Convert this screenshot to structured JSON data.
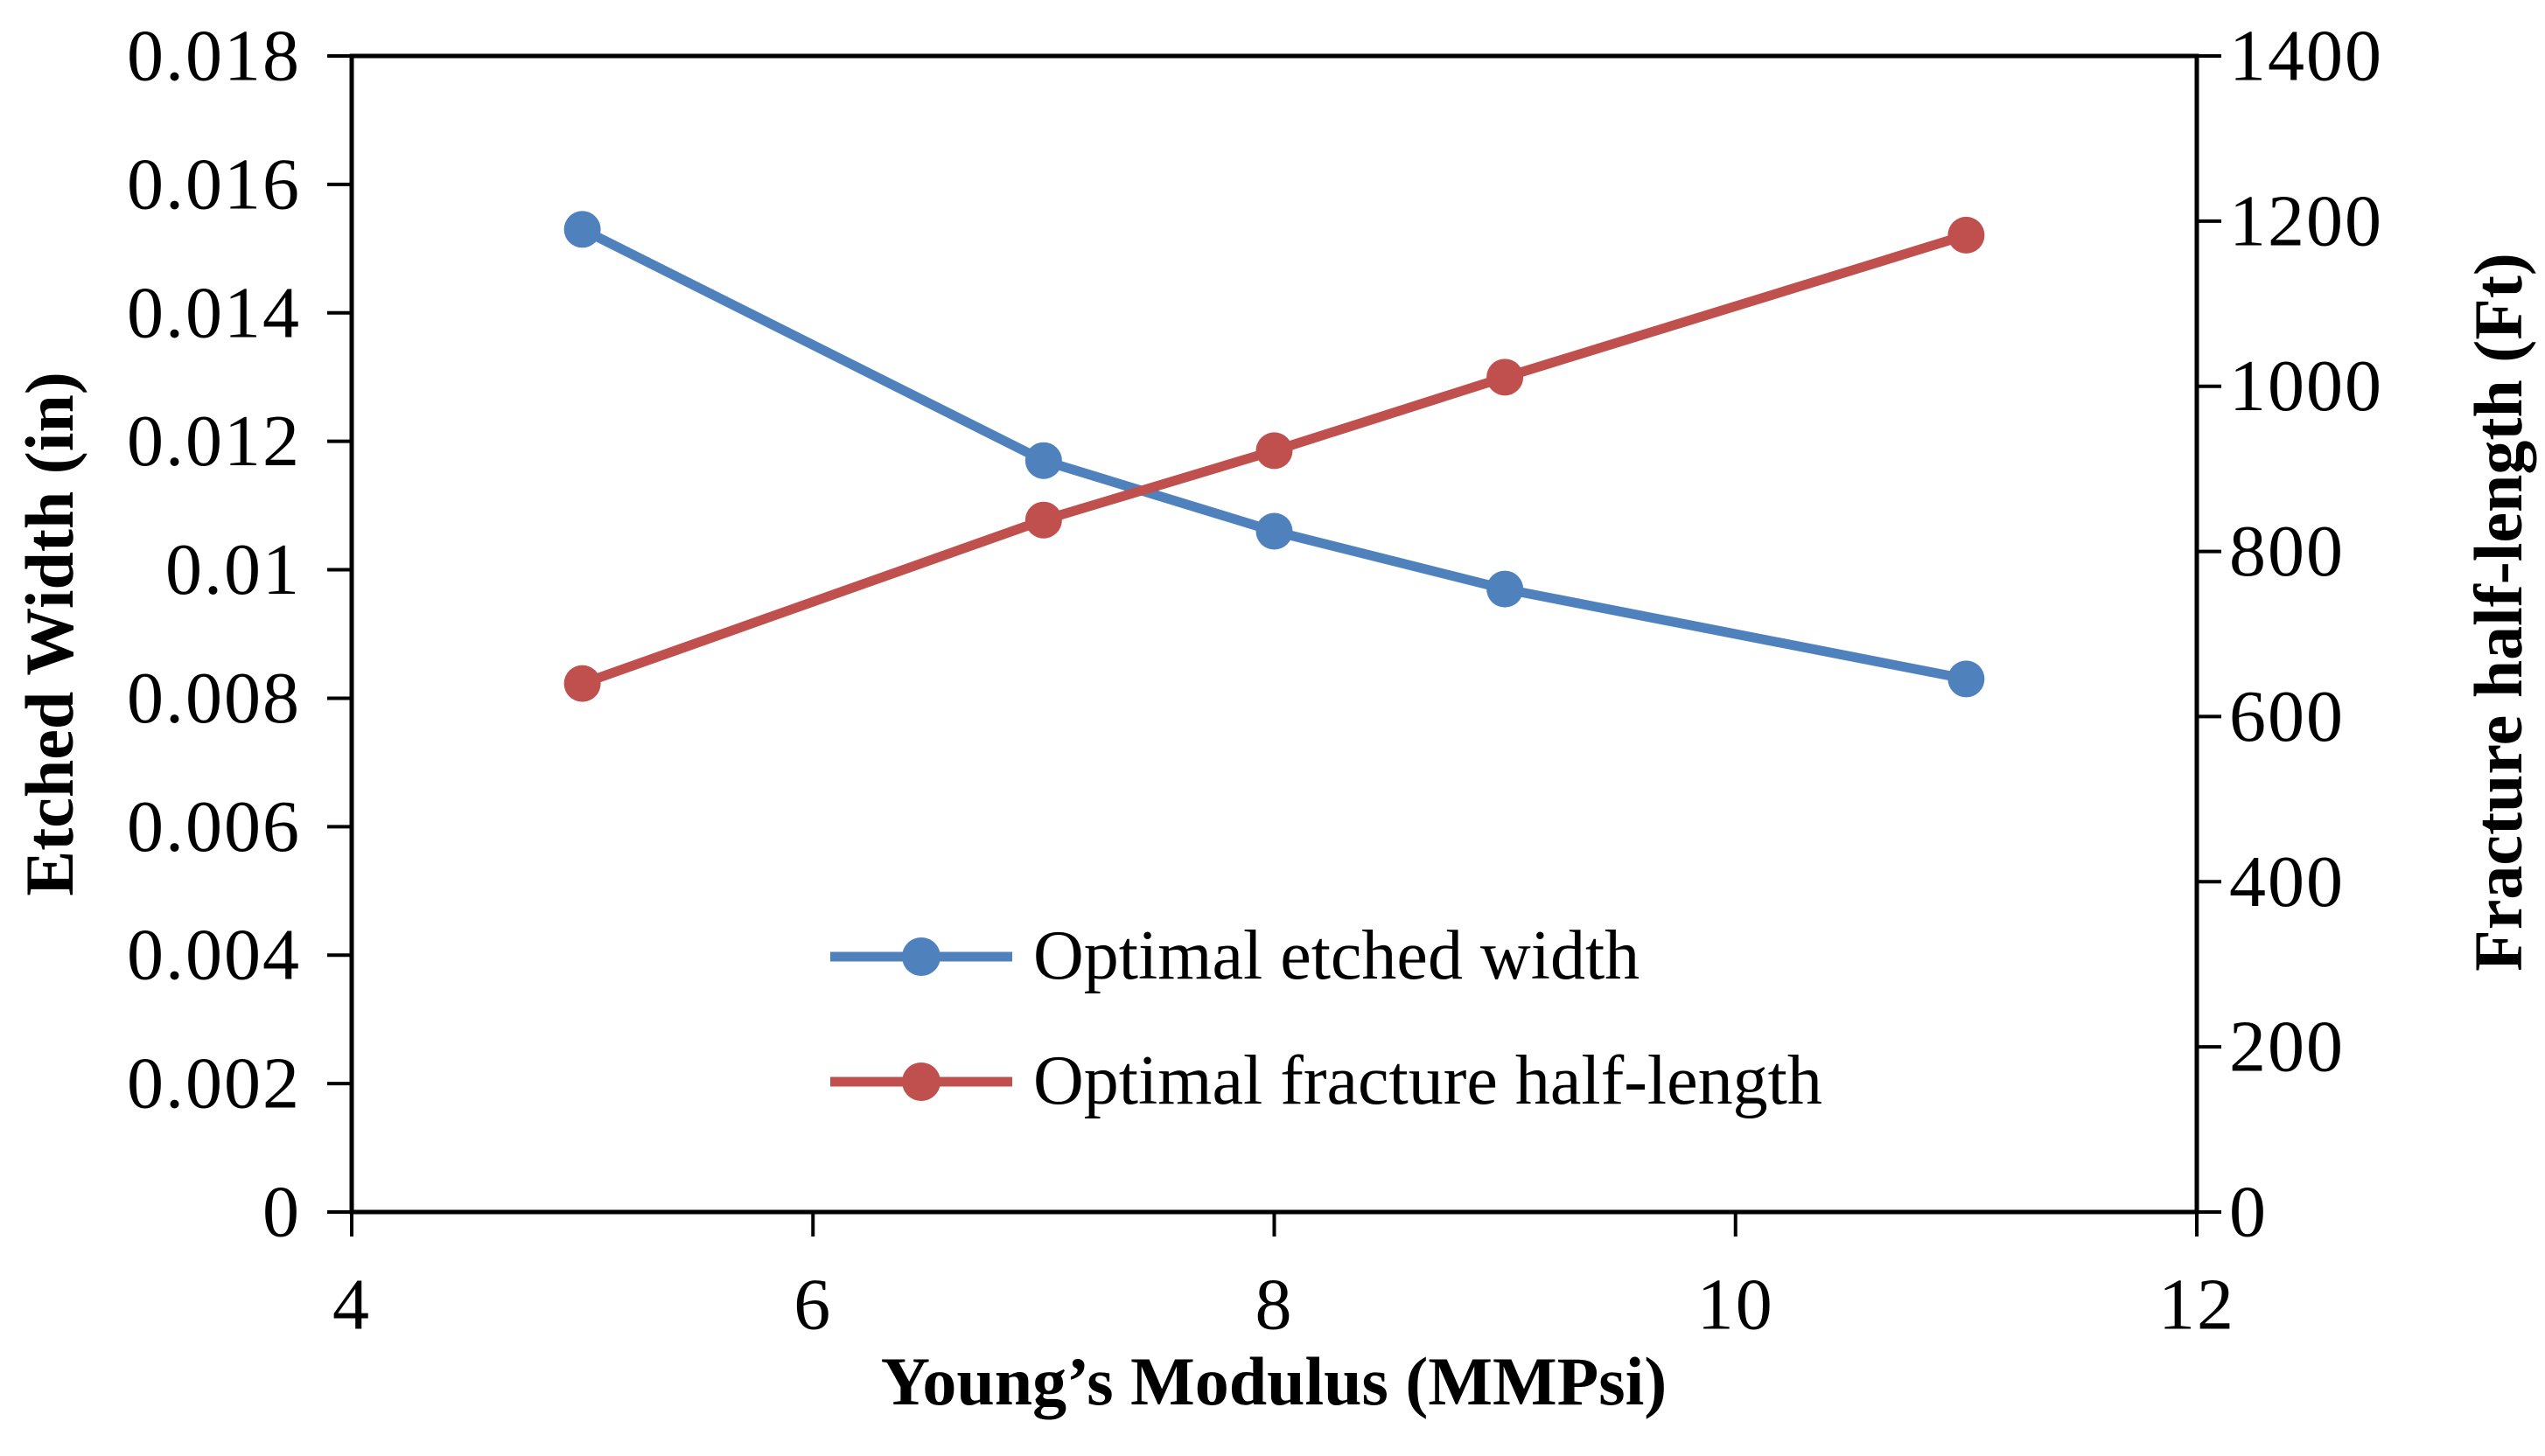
{
  "chart_data": {
    "type": "line",
    "title": "",
    "xlabel": "Young’s Modulus (MMPsi)",
    "ylabel_left": "Etched Width (in)",
    "ylabel_right": "Fracture half-length (Ft)",
    "xlim": [
      4,
      12
    ],
    "x_ticks": [
      4,
      6,
      8,
      10,
      12
    ],
    "ylim_left": [
      0,
      0.018
    ],
    "left_ticks": [
      0,
      0.002,
      0.004,
      0.006,
      0.008,
      0.01,
      0.012,
      0.014,
      0.016,
      0.018
    ],
    "ylim_right": [
      0,
      1400
    ],
    "right_ticks": [
      0,
      200,
      400,
      600,
      800,
      1000,
      1200,
      1400
    ],
    "grid": false,
    "legend_position": "inside-bottom-center",
    "series": [
      {
        "name": "Optimal etched width",
        "axis": "left",
        "color": "#4F81BD",
        "x": [
          5,
          7,
          8,
          9,
          11
        ],
        "values": [
          0.0153,
          0.0117,
          0.0106,
          0.0097,
          0.0083
        ]
      },
      {
        "name": "Optimal fracture half-length",
        "axis": "right",
        "color": "#C0504D",
        "x": [
          5,
          7,
          8,
          9,
          11
        ],
        "values": [
          640,
          838,
          922,
          1011,
          1183
        ]
      }
    ]
  }
}
